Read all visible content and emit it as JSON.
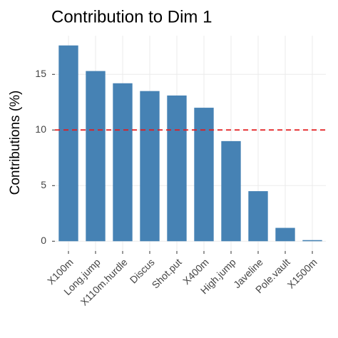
{
  "chart_data": {
    "type": "bar",
    "title": "Contribution to Dim 1",
    "y_label": "Contributions (%)",
    "categories": [
      "X100m",
      "Long.jump",
      "X110m.hurdle",
      "Discus",
      "Shot.put",
      "X400m",
      "High.jump",
      "Javeline",
      "Pole.vault",
      "X1500m"
    ],
    "values": [
      17.6,
      15.3,
      14.2,
      13.5,
      13.1,
      12.0,
      9.0,
      4.5,
      1.2,
      0.1
    ],
    "color": "#4682b4",
    "ylim": [
      -0.88,
      18.48
    ],
    "yticks": [
      0,
      5,
      10,
      15
    ],
    "grid": true,
    "reference_line": {
      "value": 10,
      "color": "#e41a1c"
    }
  }
}
